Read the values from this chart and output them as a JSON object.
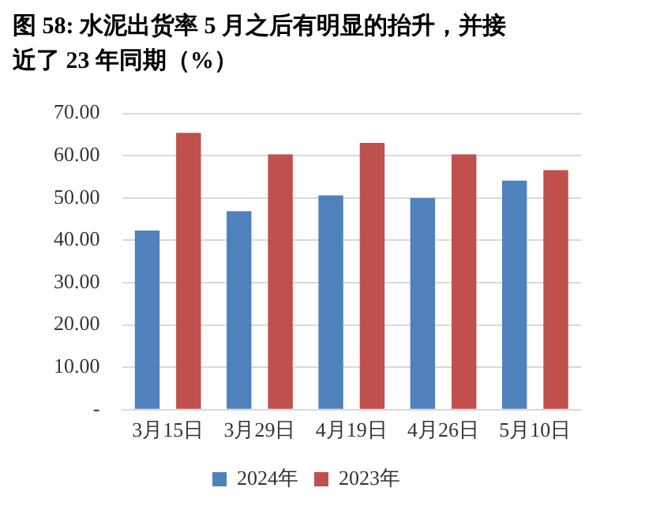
{
  "chart_data": {
    "type": "bar",
    "title": "图 58: 水泥出货率 5 月之后有明显的抬升，并接近了 23 年同期（%）",
    "categories": [
      "3月15日",
      "3月29日",
      "4月19日",
      "4月26日",
      "5月10日"
    ],
    "series": [
      {
        "name": "2024年",
        "color": "#4f81bd",
        "values": [
          42.3,
          46.9,
          50.6,
          50.0,
          54.1
        ]
      },
      {
        "name": "2023年",
        "color": "#c0504d",
        "values": [
          65.4,
          60.3,
          63.0,
          60.3,
          56.6
        ]
      }
    ],
    "ylim": [
      0,
      70
    ],
    "yticks": [
      {
        "value": 0,
        "label": "-"
      },
      {
        "value": 10,
        "label": "10.00"
      },
      {
        "value": 20,
        "label": "20.00"
      },
      {
        "value": 30,
        "label": "30.00"
      },
      {
        "value": 40,
        "label": "40.00"
      },
      {
        "value": 50,
        "label": "50.00"
      },
      {
        "value": 60,
        "label": "60.00"
      },
      {
        "value": 70,
        "label": "70.00"
      }
    ],
    "grid": "y",
    "legend": "bottom"
  }
}
